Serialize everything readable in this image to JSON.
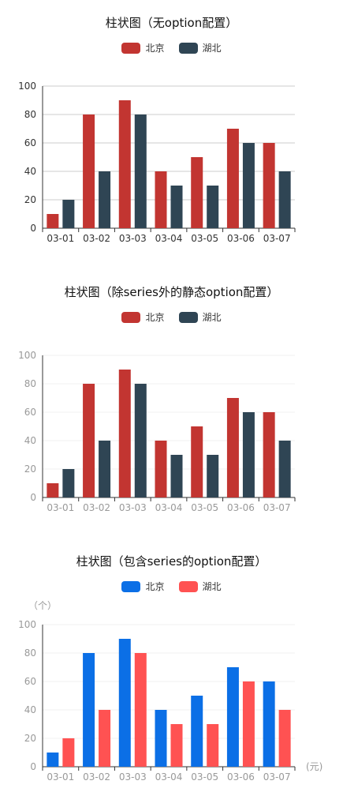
{
  "chart_data": [
    {
      "type": "bar",
      "title": "柱状图（无option配置）",
      "categories": [
        "03-01",
        "03-02",
        "03-03",
        "03-04",
        "03-05",
        "03-06",
        "03-07"
      ],
      "series": [
        {
          "name": "北京",
          "values": [
            10,
            80,
            90,
            40,
            50,
            70,
            60
          ]
        },
        {
          "name": "湖北",
          "values": [
            20,
            40,
            80,
            30,
            30,
            60,
            40
          ]
        }
      ],
      "colors": [
        "#c23531",
        "#2f4554"
      ],
      "ylim": [
        0,
        100
      ],
      "yticks": [
        0,
        20,
        40,
        60,
        80,
        100
      ],
      "ylabel": "",
      "xlabel": "",
      "grid": true,
      "grid_color": "#cccccc",
      "axis_text_color": "#333333",
      "legend": "top-center"
    },
    {
      "type": "bar",
      "title": "柱状图（除series外的静态option配置）",
      "categories": [
        "03-01",
        "03-02",
        "03-03",
        "03-04",
        "03-05",
        "03-06",
        "03-07"
      ],
      "series": [
        {
          "name": "北京",
          "values": [
            10,
            80,
            90,
            40,
            50,
            70,
            60
          ]
        },
        {
          "name": "湖北",
          "values": [
            20,
            40,
            80,
            30,
            30,
            60,
            40
          ]
        }
      ],
      "colors": [
        "#c23531",
        "#2f4554"
      ],
      "ylim": [
        0,
        100
      ],
      "yticks": [
        0,
        20,
        40,
        60,
        80,
        100
      ],
      "ylabel": "",
      "xlabel": "",
      "grid": true,
      "grid_color": "#f0f0f0",
      "axis_text_color": "#999999",
      "legend": "top-center"
    },
    {
      "type": "bar",
      "title": "柱状图（包含series的option配置）",
      "categories": [
        "03-01",
        "03-02",
        "03-03",
        "03-04",
        "03-05",
        "03-06",
        "03-07"
      ],
      "series": [
        {
          "name": "北京",
          "values": [
            10,
            80,
            90,
            40,
            50,
            70,
            60
          ]
        },
        {
          "name": "湖北",
          "values": [
            20,
            40,
            80,
            30,
            30,
            60,
            40
          ]
        }
      ],
      "colors": [
        "#0b6fe6",
        "#ff5252"
      ],
      "ylim": [
        0,
        100
      ],
      "yticks": [
        0,
        20,
        40,
        60,
        80,
        100
      ],
      "ylabel": "（个）",
      "xlabel": "(元)",
      "grid": true,
      "grid_color": "#f0f0f0",
      "axis_text_color": "#999999",
      "legend": "top-center"
    }
  ]
}
